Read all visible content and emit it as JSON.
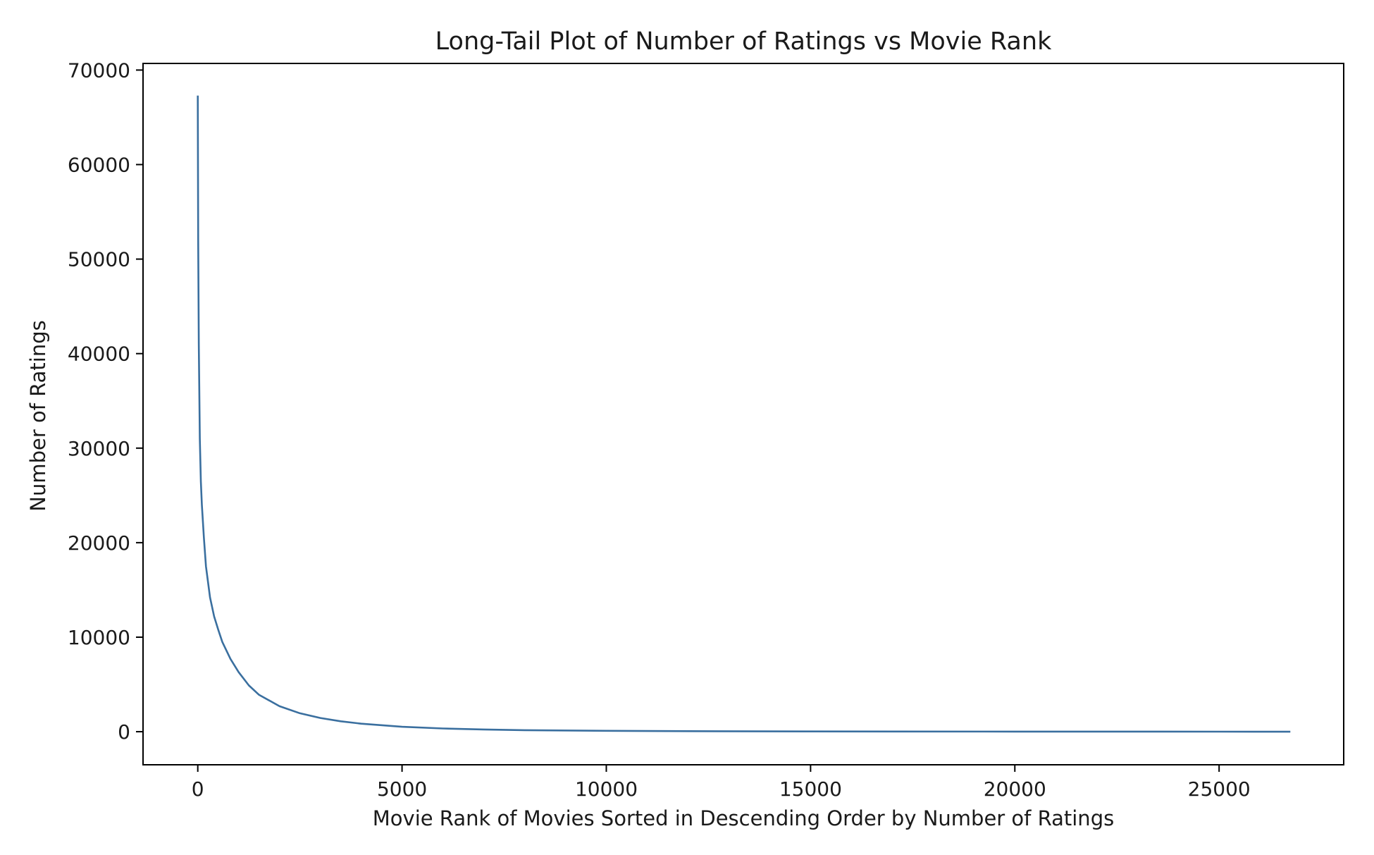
{
  "chart_data": {
    "type": "line",
    "title": "Long-Tail Plot of Number of Ratings vs Movie Rank",
    "xlabel": "Movie Rank of Movies Sorted in Descending Order by Number of Ratings",
    "ylabel": "Number of Ratings",
    "xlim": [
      -1340,
      28050
    ],
    "ylim": [
      -3500,
      70700
    ],
    "xticks": [
      0,
      5000,
      10000,
      15000,
      20000,
      25000
    ],
    "xtick_labels": [
      "0",
      "5000",
      "10000",
      "15000",
      "20000",
      "25000"
    ],
    "yticks": [
      0,
      10000,
      20000,
      30000,
      40000,
      50000,
      60000,
      70000
    ],
    "ytick_labels": [
      "0",
      "10000",
      "20000",
      "30000",
      "40000",
      "50000",
      "60000",
      "70000"
    ],
    "grid": false,
    "line_color": "#3a6f9f",
    "series": [
      {
        "x": [
          0,
          10,
          25,
          50,
          75,
          100,
          150,
          200,
          300,
          400,
          500,
          600,
          800,
          1000,
          1250,
          1500,
          2000,
          2500,
          3000,
          3500,
          4000,
          5000,
          6000,
          7000,
          8000,
          10000,
          12000,
          15000,
          20000,
          25000,
          26744
        ],
        "values": [
          67300,
          52000,
          41000,
          31000,
          26500,
          24000,
          20500,
          17500,
          14200,
          12200,
          10800,
          9500,
          7700,
          6300,
          4900,
          3900,
          2700,
          1950,
          1450,
          1100,
          850,
          520,
          340,
          230,
          160,
          90,
          55,
          30,
          12,
          4,
          1
        ]
      }
    ]
  }
}
